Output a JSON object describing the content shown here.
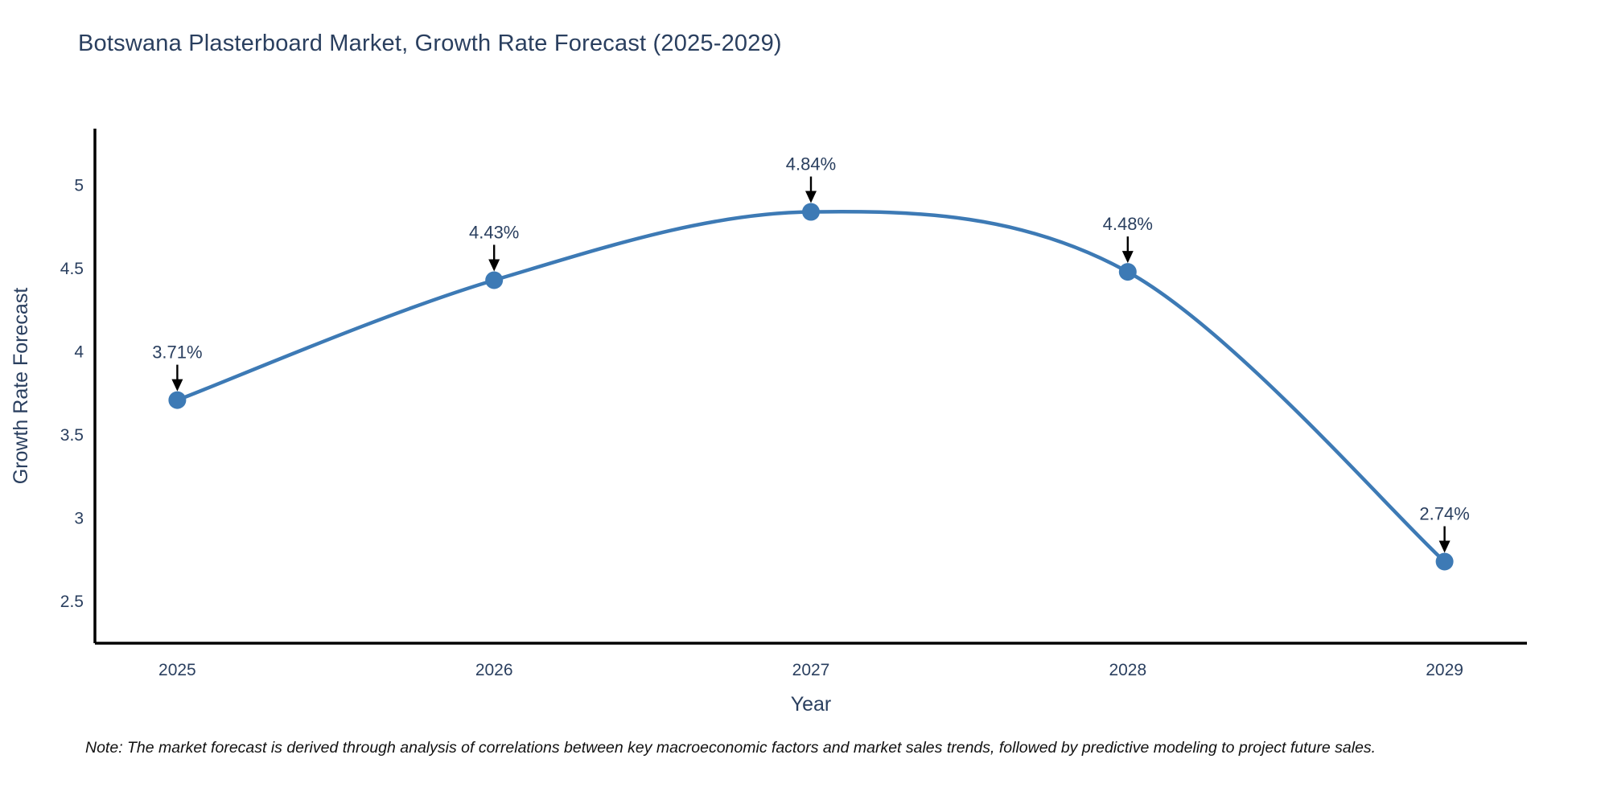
{
  "title": "Botswana Plasterboard Market, Growth Rate Forecast (2025-2029)",
  "note": "Note: The market forecast is derived through analysis of correlations between key macroeconomic factors and market sales trends, followed by predictive modeling to project future sales.",
  "chart_data": {
    "type": "line",
    "title": "Botswana Plasterboard Market, Growth Rate Forecast (2025-2029)",
    "xlabel": "Year",
    "ylabel": "Growth Rate Forecast",
    "x": [
      2025,
      2026,
      2027,
      2028,
      2029
    ],
    "values": [
      3.71,
      4.43,
      4.84,
      4.48,
      2.74
    ],
    "point_labels": [
      "3.71%",
      "4.43%",
      "4.84%",
      "4.48%",
      "2.74%"
    ],
    "xticks": [
      2025,
      2026,
      2027,
      2028,
      2029
    ],
    "xtick_labels": [
      "2025",
      "2026",
      "2027",
      "2028",
      "2029"
    ],
    "yticks": [
      2.5,
      3,
      3.5,
      4,
      4.5,
      5
    ],
    "ytick_labels": [
      "2.5",
      "3",
      "3.5",
      "4",
      "4.5",
      "5"
    ],
    "xlim": [
      2024.74,
      2029.26
    ],
    "ylim": [
      2.25,
      5.34
    ],
    "line_shape": "spline",
    "grid": false,
    "legend_position": "none",
    "colors": {
      "line": "#3d7ab5",
      "marker": "#3d7ab5",
      "axis": "#000000",
      "tick_text": "#2a3f5f",
      "title_text": "#2a3f5f",
      "annotation_text": "#2a3f5f",
      "annotation_arrow": "#000000",
      "background": "#ffffff"
    }
  }
}
